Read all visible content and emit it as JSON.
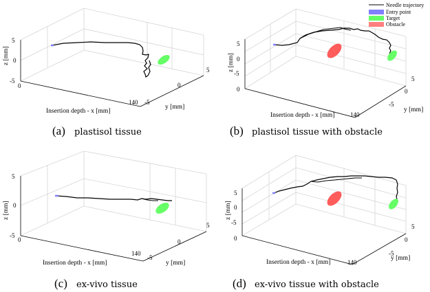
{
  "legend": {
    "needle": "Needle trajectory",
    "entry": "Entry point",
    "target": "Target",
    "obstacle": "Obstacle"
  },
  "colors": {
    "needle": "#000000",
    "entry": "#7f7fff",
    "target": "#66ff66",
    "obstacle": "#ff5c5c"
  },
  "panels": [
    {
      "caption_letter": "(a)",
      "caption_text": "plastisol tissue",
      "xlabel": "Insertion depth - x [mm]",
      "ylabel": "y [mm]",
      "zlabel": "z [mm]",
      "z_ticks": [
        "5",
        "0",
        "-5"
      ],
      "y_ticks": [
        "5",
        "0",
        "-5"
      ],
      "x_ticks": [
        "0",
        "140"
      ]
    },
    {
      "caption_letter": "(b)",
      "caption_text": "plastisol tissue with obstacle",
      "xlabel": "Insertion depth - x [mm]",
      "ylabel": "y [mm]",
      "zlabel": "z [mm]",
      "z_ticks": [
        "5",
        "0",
        "-5"
      ],
      "y_ticks": [
        "5",
        "0",
        "-5"
      ],
      "x_ticks": [
        "0",
        "140"
      ]
    },
    {
      "caption_letter": "(c)",
      "caption_text": "ex-vivo tissue",
      "xlabel": "Insertion depth - x [mm]",
      "ylabel": "y [mm]",
      "zlabel": "z [mm]",
      "z_ticks": [
        "5",
        "0",
        "-5"
      ],
      "y_ticks": [
        "5",
        "0",
        "-5"
      ],
      "x_ticks": [
        "0",
        "140"
      ]
    },
    {
      "caption_letter": "(d)",
      "caption_text": "ex-vivo tissue with obstacle",
      "xlabel": "Insertion depth - x [mm]",
      "ylabel": "y [mm]",
      "zlabel": "z [mm]",
      "z_ticks": [
        "5",
        "0",
        "-5"
      ],
      "y_ticks": [
        "5",
        "0",
        "-5"
      ],
      "x_ticks": [
        "0",
        "140"
      ]
    }
  ]
}
